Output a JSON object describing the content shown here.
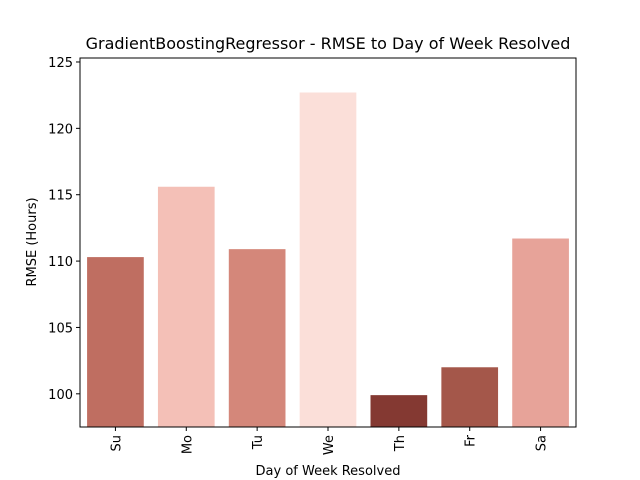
{
  "chart_data": {
    "type": "bar",
    "title": "GradientBoostingRegressor - RMSE to Day of Week Resolved",
    "xlabel": "Day of Week Resolved",
    "ylabel": "RMSE (Hours)",
    "categories": [
      "Su",
      "Mo",
      "Tu",
      "We",
      "Th",
      "Fr",
      "Sa"
    ],
    "values": [
      110.3,
      115.6,
      110.9,
      122.7,
      99.9,
      102.0,
      111.7
    ],
    "colors": [
      "#bf6e61",
      "#f4c0b7",
      "#d4877a",
      "#fbdfd9",
      "#843932",
      "#a4574a",
      "#e7a399"
    ],
    "ylim": [
      97.5,
      125.3
    ],
    "yticks": [
      100,
      105,
      110,
      115,
      120,
      125
    ],
    "xtick_rotation": "vertical",
    "grid": false,
    "legend": "none"
  }
}
